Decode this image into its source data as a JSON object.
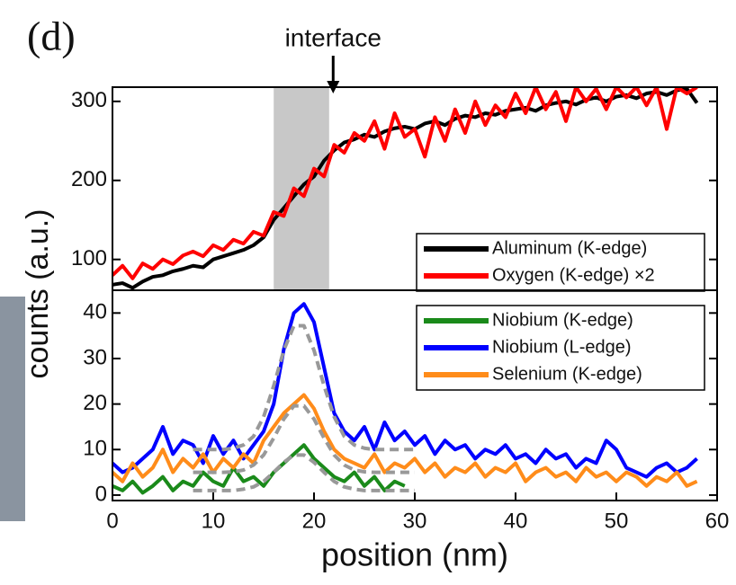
{
  "chart_data": [
    {
      "type": "line",
      "title": "(d)",
      "ylabel": "counts (a.u.)",
      "annotation": {
        "text": "interface",
        "x": 21.9
      },
      "span": [
        16,
        21.5
      ],
      "legend": "lower right",
      "x": [
        0,
        1,
        2,
        3,
        4,
        5,
        6,
        7,
        8,
        9,
        10,
        11,
        12,
        13,
        14,
        15,
        16,
        17,
        18,
        19,
        20,
        21,
        22,
        23,
        24,
        25,
        26,
        27,
        28,
        29,
        30,
        31,
        32,
        33,
        34,
        35,
        36,
        37,
        38,
        39,
        40,
        41,
        42,
        43,
        44,
        45,
        46,
        47,
        48,
        49,
        50,
        51,
        52,
        53,
        54,
        55,
        56,
        57,
        58
      ],
      "xlim": [
        0,
        60
      ],
      "ylim": [
        61,
        318
      ],
      "yticks": [
        100,
        200,
        300
      ],
      "series": [
        {
          "name": "Aluminum (K-edge)",
          "color": "#000000",
          "values": [
            68,
            70,
            64,
            72,
            78,
            80,
            85,
            88,
            92,
            90,
            100,
            104,
            108,
            112,
            118,
            128,
            150,
            165,
            180,
            195,
            205,
            225,
            238,
            248,
            252,
            258,
            255,
            262,
            266,
            268,
            265,
            272,
            275,
            270,
            278,
            282,
            280,
            285,
            283,
            288,
            290,
            292,
            288,
            295,
            298,
            300,
            296,
            302,
            305,
            300,
            306,
            308,
            304,
            310,
            312,
            308,
            314,
            316,
            298
          ]
        },
        {
          "name": "Oxygen (K-edge) ×2",
          "color": "#ff0000",
          "values": [
            80,
            92,
            76,
            95,
            88,
            100,
            94,
            105,
            110,
            104,
            118,
            112,
            125,
            120,
            135,
            130,
            160,
            155,
            190,
            180,
            215,
            205,
            245,
            235,
            260,
            250,
            275,
            240,
            285,
            255,
            265,
            230,
            280,
            250,
            290,
            260,
            300,
            270,
            295,
            280,
            310,
            285,
            318,
            290,
            312,
            275,
            318,
            300,
            316,
            290,
            318,
            305,
            318,
            295,
            318,
            265,
            318,
            310,
            318
          ]
        }
      ]
    },
    {
      "type": "line",
      "xlabel": "position (nm)",
      "legend": "upper right",
      "x": [
        0,
        1,
        2,
        3,
        4,
        5,
        6,
        7,
        8,
        9,
        10,
        11,
        12,
        13,
        14,
        15,
        16,
        17,
        18,
        19,
        20,
        21,
        22,
        23,
        24,
        25,
        26,
        27,
        28,
        29,
        30,
        31,
        32,
        33,
        34,
        35,
        36,
        37,
        38,
        39,
        40,
        41,
        42,
        43,
        44,
        45,
        46,
        47,
        48,
        49,
        50,
        51,
        52,
        53,
        54,
        55,
        56,
        57,
        58
      ],
      "xlim": [
        0,
        60
      ],
      "xticks": [
        0,
        10,
        20,
        30,
        40,
        50,
        60
      ],
      "ylim": [
        -1.2,
        45
      ],
      "yticks": [
        0,
        10,
        20,
        30,
        40
      ],
      "series": [
        {
          "name": "Niobium (K-edge)",
          "color": "#1a8a1a",
          "values": [
            2,
            1,
            3,
            0.5,
            2,
            4,
            1,
            3,
            2,
            5,
            3,
            2,
            6,
            3,
            4,
            2,
            5,
            7,
            9,
            11,
            8,
            6,
            4,
            3,
            5,
            2,
            4,
            1,
            3,
            2,
            null,
            null,
            null,
            null,
            null,
            null,
            null,
            null,
            null,
            null,
            null,
            null,
            null,
            null,
            null,
            null,
            null,
            null,
            null,
            null,
            null,
            null,
            null,
            null,
            null,
            null,
            null,
            null,
            null
          ]
        },
        {
          "name": "Niobium (L-edge)",
          "color": "#0000ff",
          "values": [
            7,
            5,
            6,
            8,
            10,
            15,
            9,
            12,
            11,
            7,
            13,
            9,
            12,
            8,
            11,
            14,
            20,
            32,
            40,
            42,
            38,
            28,
            18,
            14,
            12,
            15,
            10,
            16,
            12,
            14,
            11,
            13,
            9,
            12,
            10,
            11,
            8,
            10,
            9,
            11,
            8,
            9,
            7,
            10,
            8,
            9,
            6,
            8,
            7,
            12,
            10,
            6,
            5,
            4,
            6,
            7,
            5,
            6,
            8
          ]
        },
        {
          "name": "Selenium (K-edge)",
          "color": "#ff8c1a",
          "values": [
            5,
            3,
            7,
            4,
            6,
            10,
            5,
            8,
            6,
            9,
            5,
            8,
            6,
            9,
            7,
            12,
            15,
            18,
            20,
            22,
            19,
            14,
            10,
            8,
            7,
            6,
            9,
            5,
            7,
            6,
            8,
            5,
            7,
            4,
            6,
            5,
            7,
            4,
            6,
            5,
            7,
            3,
            5,
            6,
            4,
            5,
            3,
            6,
            4,
            5,
            3,
            5,
            4,
            2,
            4,
            3,
            5,
            2,
            3
          ]
        }
      ],
      "fits": {
        "color": "#999999",
        "x": [
          8,
          9,
          10,
          11,
          12,
          13,
          14,
          15,
          16,
          17,
          18,
          19,
          20,
          21,
          22,
          23,
          24,
          25,
          26,
          27,
          28,
          29,
          30
        ],
        "series": [
          {
            "values": [
              1,
              1,
              1,
              1,
              1,
              1.3,
              1.8,
              3,
              5,
              7.2,
              8.8,
              8.8,
              7.2,
              5,
              3,
              1.8,
              1.3,
              1,
              1,
              1,
              1,
              1,
              1
            ]
          },
          {
            "values": [
              10,
              10,
              10,
              10,
              10.3,
              11,
              12.9,
              17.2,
              24,
              31.8,
              37.2,
              37.2,
              31.8,
              24,
              17.2,
              12.9,
              11,
              10.3,
              10,
              10,
              10,
              10,
              10
            ]
          },
          {
            "values": [
              5,
              5,
              5,
              5,
              5.1,
              5.5,
              6.6,
              8.8,
              12.5,
              16.7,
              19.6,
              19.6,
              16.7,
              12.5,
              8.8,
              6.6,
              5.5,
              5.1,
              5,
              5,
              5,
              5,
              5
            ]
          }
        ]
      }
    }
  ]
}
